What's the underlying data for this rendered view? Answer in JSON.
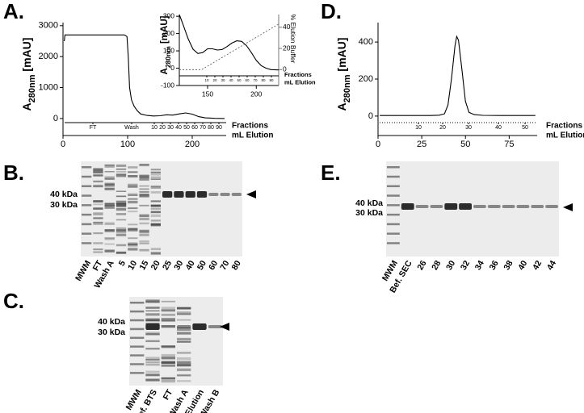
{
  "panel_labels": [
    "A.",
    "B.",
    "C.",
    "D.",
    "E."
  ],
  "chart_data": [
    {
      "type": "line",
      "ylabel": [
        "A",
        "280nm",
        " [mAU]"
      ],
      "x": [
        2,
        3,
        10,
        50,
        95,
        99,
        101,
        103,
        106,
        110,
        115,
        120,
        130,
        140,
        150,
        160,
        170,
        180,
        190,
        200,
        210,
        220,
        235,
        250
      ],
      "series": [
        {
          "color": "#000000",
          "values": [
            2500,
            2700,
            2700,
            2700,
            2700,
            2650,
            2000,
            1000,
            600,
            400,
            250,
            150,
            100,
            80,
            90,
            120,
            110,
            150,
            180,
            140,
            60,
            20,
            5,
            0
          ]
        }
      ],
      "xlim": [
        0,
        252.5
      ],
      "ylim": [
        -550,
        3100
      ],
      "xticks": [
        0,
        100,
        200
      ],
      "yticks": [
        0,
        1000,
        2000,
        3000
      ],
      "fractions": [
        "FT",
        "Wash",
        "10",
        "20",
        "30",
        "40",
        "50",
        "60",
        "70",
        "80",
        "90"
      ],
      "x_captions": [
        "Fractions",
        "mL Elution"
      ]
    },
    {
      "type": "line",
      "ylabel": [
        "A",
        "280nm",
        " [mAU]"
      ],
      "y2label": "% Elution Buffer",
      "x": [
        121,
        125,
        130,
        135,
        140,
        145,
        150,
        155,
        160,
        165,
        170,
        175,
        180,
        185,
        190,
        195,
        200,
        205,
        210,
        215,
        223
      ],
      "series": [
        {
          "color": "#000000",
          "values": [
            310,
            250,
            170,
            110,
            85,
            90,
            112,
            112,
            105,
            108,
            125,
            145,
            158,
            155,
            130,
            90,
            45,
            15,
            0,
            -8,
            -10
          ]
        },
        {
          "color": "#555555",
          "axis": "y2",
          "style": "dashed",
          "x": [
            121,
            144,
            223
          ],
          "values": [
            0,
            0,
            43
          ]
        }
      ],
      "xlim": [
        121,
        223
      ],
      "ylim": [
        -100,
        310
      ],
      "y2lim": [
        -15,
        52
      ],
      "xticks": [
        150,
        200
      ],
      "yticks": [
        -100,
        0,
        100,
        200,
        300
      ],
      "y2ticks": [
        0,
        20,
        40
      ],
      "fractions": [
        "10",
        "20",
        "30",
        "40",
        "50",
        "60",
        "70",
        "80",
        "90"
      ],
      "x_captions": [
        "Fractions",
        "mL Elution"
      ]
    },
    {
      "type": "line",
      "ylabel": [
        "A",
        "280nm",
        " [mAU]"
      ],
      "x": [
        1,
        10,
        20,
        30,
        35,
        38,
        40,
        42,
        44,
        45,
        46,
        48,
        50,
        52,
        55,
        60,
        70,
        80,
        90
      ],
      "series": [
        {
          "color": "#000000",
          "values": [
            3,
            3,
            3,
            3,
            5,
            12,
            60,
            200,
            380,
            430,
            410,
            250,
            80,
            20,
            8,
            4,
            3,
            3,
            3
          ]
        }
      ],
      "xlim": [
        0,
        91
      ],
      "ylim": [
        -105,
        505
      ],
      "xticks": [
        0,
        25,
        50,
        75
      ],
      "yticks": [
        0,
        200,
        400
      ],
      "fractions": [
        "10",
        "20",
        "30",
        "40",
        "50"
      ],
      "x_captions": [
        "Fractions",
        "mL Elution"
      ]
    }
  ],
  "gels": [
    {
      "mw_labels": [
        "40 kDa",
        "30 kDa"
      ],
      "lanes": [
        "MWM",
        "FT",
        "Wash A",
        "5",
        "10",
        "15",
        "20",
        "25",
        "30",
        "40",
        "50",
        "60",
        "70",
        "80"
      ]
    },
    {
      "mw_labels": [
        "40 kDa",
        "30 kDa"
      ],
      "lanes": [
        "MWM",
        "Bef. BTS",
        "FT",
        "Wash A",
        "Elution",
        "Wash B"
      ]
    },
    {
      "mw_labels": [
        "40 kDa",
        "30 kDa"
      ],
      "lanes": [
        "MWM",
        "Bef. SEC",
        "26",
        "28",
        "30",
        "32",
        "34",
        "36",
        "38",
        "40",
        "42",
        "44"
      ]
    }
  ]
}
